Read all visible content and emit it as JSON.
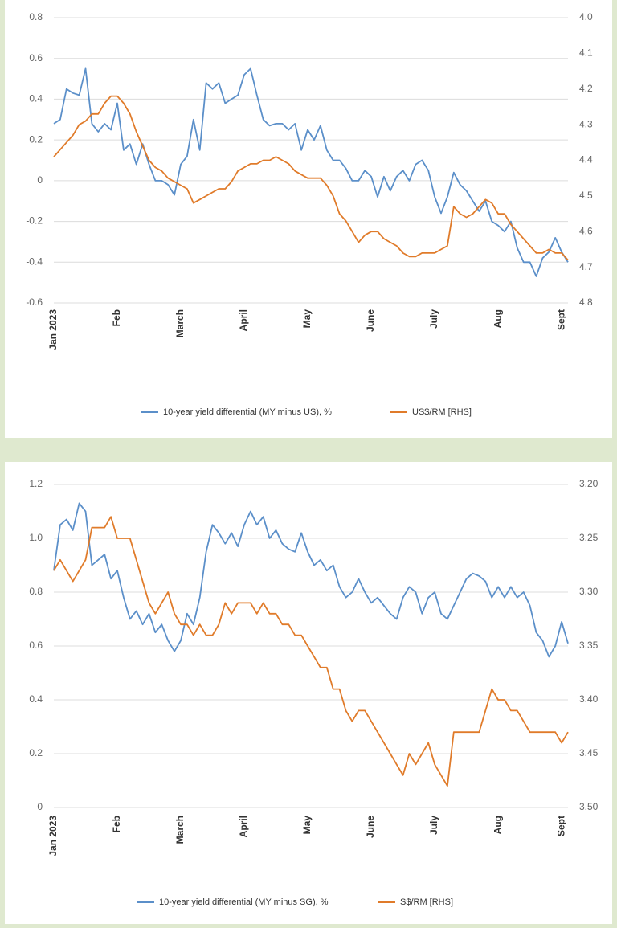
{
  "chart_data": [
    {
      "type": "line",
      "x": [
        0,
        0.1,
        0.2,
        0.3,
        0.4,
        0.5,
        0.6,
        0.7,
        0.8,
        0.9,
        1,
        1.1,
        1.2,
        1.3,
        1.4,
        1.5,
        1.6,
        1.7,
        1.8,
        1.9,
        2,
        2.1,
        2.2,
        2.3,
        2.4,
        2.5,
        2.6,
        2.7,
        2.8,
        2.9,
        3,
        3.1,
        3.2,
        3.3,
        3.4,
        3.5,
        3.6,
        3.7,
        3.8,
        3.9,
        4,
        4.1,
        4.2,
        4.3,
        4.4,
        4.5,
        4.6,
        4.7,
        4.8,
        4.9,
        5,
        5.1,
        5.2,
        5.3,
        5.4,
        5.5,
        5.6,
        5.7,
        5.8,
        5.9,
        6,
        6.1,
        6.2,
        6.3,
        6.4,
        6.5,
        6.6,
        6.7,
        6.8,
        6.9,
        7,
        7.1,
        7.2,
        7.3,
        7.4,
        7.5,
        7.6,
        7.7,
        7.8,
        7.9,
        8,
        8.1
      ],
      "xlim": [
        0,
        8.1
      ],
      "xticks": [
        {
          "value": 0,
          "label": "Jan 2023"
        },
        {
          "value": 1,
          "label": "Feb"
        },
        {
          "value": 2,
          "label": "March"
        },
        {
          "value": 3,
          "label": "April"
        },
        {
          "value": 4,
          "label": "May"
        },
        {
          "value": 5,
          "label": "June"
        },
        {
          "value": 6,
          "label": "July"
        },
        {
          "value": 7,
          "label": "Aug"
        },
        {
          "value": 8,
          "label": "Sept"
        }
      ],
      "ylim": [
        -0.6,
        0.8
      ],
      "yticks": [
        0.8,
        0.6,
        0.4,
        0.2,
        0,
        -0.2,
        -0.4,
        -0.6
      ],
      "y2lim": [
        4.8,
        4.0
      ],
      "y2ticks": [
        {
          "value": 4,
          "label": "4.0"
        },
        4.1,
        4.2,
        4.3,
        4.4,
        4.5,
        4.6,
        4.7,
        4.8
      ],
      "grid": true,
      "series": [
        {
          "name": "10-year yield differential (MY minus US), %",
          "color": "#5b8fc9",
          "values": [
            0.28,
            0.3,
            0.45,
            0.43,
            0.42,
            0.55,
            0.28,
            0.24,
            0.28,
            0.25,
            0.38,
            0.15,
            0.18,
            0.08,
            0.18,
            0.08,
            0.0,
            0.0,
            -0.02,
            -0.07,
            0.08,
            0.12,
            0.3,
            0.15,
            0.48,
            0.45,
            0.48,
            0.38,
            0.4,
            0.42,
            0.52,
            0.55,
            0.42,
            0.3,
            0.27,
            0.28,
            0.28,
            0.25,
            0.28,
            0.15,
            0.25,
            0.2,
            0.27,
            0.15,
            0.1,
            0.1,
            0.06,
            0.0,
            0.0,
            0.05,
            0.02,
            -0.08,
            0.02,
            -0.05,
            0.02,
            0.05,
            0.0,
            0.08,
            0.1,
            0.05,
            -0.08,
            -0.16,
            -0.08,
            0.04,
            -0.02,
            -0.05,
            -0.1,
            -0.15,
            -0.1,
            -0.2,
            -0.22,
            -0.25,
            -0.2,
            -0.33,
            -0.4,
            -0.4,
            -0.47,
            -0.38,
            -0.35,
            -0.28,
            -0.35,
            -0.4
          ]
        },
        {
          "name": "US$/RM [RHS]",
          "color": "#e07b2a",
          "axis": "y2",
          "values": [
            4.39,
            4.37,
            4.35,
            4.33,
            4.3,
            4.29,
            4.27,
            4.27,
            4.24,
            4.22,
            4.22,
            4.24,
            4.27,
            4.32,
            4.36,
            4.4,
            4.42,
            4.43,
            4.45,
            4.46,
            4.47,
            4.48,
            4.52,
            4.51,
            4.5,
            4.49,
            4.48,
            4.48,
            4.46,
            4.43,
            4.42,
            4.41,
            4.41,
            4.4,
            4.4,
            4.39,
            4.4,
            4.41,
            4.43,
            4.44,
            4.45,
            4.45,
            4.45,
            4.47,
            4.5,
            4.55,
            4.57,
            4.6,
            4.63,
            4.61,
            4.6,
            4.6,
            4.62,
            4.63,
            4.64,
            4.66,
            4.67,
            4.67,
            4.66,
            4.66,
            4.66,
            4.65,
            4.64,
            4.53,
            4.55,
            4.56,
            4.55,
            4.53,
            4.51,
            4.52,
            4.55,
            4.55,
            4.58,
            4.6,
            4.62,
            4.64,
            4.66,
            4.66,
            4.65,
            4.66,
            4.66,
            4.68
          ]
        }
      ]
    },
    {
      "type": "line",
      "x": [
        0,
        0.1,
        0.2,
        0.3,
        0.4,
        0.5,
        0.6,
        0.7,
        0.8,
        0.9,
        1,
        1.1,
        1.2,
        1.3,
        1.4,
        1.5,
        1.6,
        1.7,
        1.8,
        1.9,
        2,
        2.1,
        2.2,
        2.3,
        2.4,
        2.5,
        2.6,
        2.7,
        2.8,
        2.9,
        3,
        3.1,
        3.2,
        3.3,
        3.4,
        3.5,
        3.6,
        3.7,
        3.8,
        3.9,
        4,
        4.1,
        4.2,
        4.3,
        4.4,
        4.5,
        4.6,
        4.7,
        4.8,
        4.9,
        5,
        5.1,
        5.2,
        5.3,
        5.4,
        5.5,
        5.6,
        5.7,
        5.8,
        5.9,
        6,
        6.1,
        6.2,
        6.3,
        6.4,
        6.5,
        6.6,
        6.7,
        6.8,
        6.9,
        7,
        7.1,
        7.2,
        7.3,
        7.4,
        7.5,
        7.6,
        7.7,
        7.8,
        7.9,
        8,
        8.1
      ],
      "xlim": [
        0,
        8.1
      ],
      "xticks": [
        {
          "value": 0,
          "label": "Jan 2023"
        },
        {
          "value": 1,
          "label": "Feb"
        },
        {
          "value": 2,
          "label": "March"
        },
        {
          "value": 3,
          "label": "April"
        },
        {
          "value": 4,
          "label": "May"
        },
        {
          "value": 5,
          "label": "June"
        },
        {
          "value": 6,
          "label": "July"
        },
        {
          "value": 7,
          "label": "Aug"
        },
        {
          "value": 8,
          "label": "Sept"
        }
      ],
      "ylim": [
        0,
        1.2
      ],
      "yticks": [
        1.2,
        {
          "value": 1,
          "label": "1.0"
        },
        0.8,
        0.6,
        0.4,
        0.2,
        0
      ],
      "y2lim": [
        3.5,
        3.2
      ],
      "y2ticks": [
        {
          "value": 3.2,
          "label": "3.20"
        },
        {
          "value": 3.25,
          "label": "3.25"
        },
        {
          "value": 3.3,
          "label": "3.30"
        },
        {
          "value": 3.35,
          "label": "3.35"
        },
        {
          "value": 3.4,
          "label": "3.40"
        },
        {
          "value": 3.45,
          "label": "3.45"
        },
        {
          "value": 3.5,
          "label": "3.50"
        }
      ],
      "grid": true,
      "series": [
        {
          "name": "10-year yield differential (MY minus SG), %",
          "color": "#5b8fc9",
          "values": [
            0.88,
            1.05,
            1.07,
            1.03,
            1.13,
            1.1,
            0.9,
            0.92,
            0.94,
            0.85,
            0.88,
            0.78,
            0.7,
            0.73,
            0.68,
            0.72,
            0.65,
            0.68,
            0.62,
            0.58,
            0.62,
            0.72,
            0.68,
            0.78,
            0.95,
            1.05,
            1.02,
            0.98,
            1.02,
            0.97,
            1.05,
            1.1,
            1.05,
            1.08,
            1.0,
            1.03,
            0.98,
            0.96,
            0.95,
            1.02,
            0.95,
            0.9,
            0.92,
            0.88,
            0.9,
            0.82,
            0.78,
            0.8,
            0.85,
            0.8,
            0.76,
            0.78,
            0.75,
            0.72,
            0.7,
            0.78,
            0.82,
            0.8,
            0.72,
            0.78,
            0.8,
            0.72,
            0.7,
            0.75,
            0.8,
            0.85,
            0.87,
            0.86,
            0.84,
            0.78,
            0.82,
            0.78,
            0.82,
            0.78,
            0.8,
            0.75,
            0.65,
            0.62,
            0.56,
            0.6,
            0.69,
            0.61
          ]
        },
        {
          "name": "S$/RM [RHS]",
          "color": "#e07b2a",
          "axis": "y2",
          "values": [
            3.28,
            3.27,
            3.28,
            3.29,
            3.28,
            3.27,
            3.24,
            3.24,
            3.24,
            3.23,
            3.25,
            3.25,
            3.25,
            3.27,
            3.29,
            3.31,
            3.32,
            3.31,
            3.3,
            3.32,
            3.33,
            3.33,
            3.34,
            3.33,
            3.34,
            3.34,
            3.33,
            3.31,
            3.32,
            3.31,
            3.31,
            3.31,
            3.32,
            3.31,
            3.32,
            3.32,
            3.33,
            3.33,
            3.34,
            3.34,
            3.35,
            3.36,
            3.37,
            3.37,
            3.39,
            3.39,
            3.41,
            3.42,
            3.41,
            3.41,
            3.42,
            3.43,
            3.44,
            3.45,
            3.46,
            3.47,
            3.45,
            3.46,
            3.45,
            3.44,
            3.46,
            3.47,
            3.48,
            3.43,
            3.43,
            3.43,
            3.43,
            3.43,
            3.41,
            3.39,
            3.4,
            3.4,
            3.41,
            3.41,
            3.42,
            3.43,
            3.43,
            3.43,
            3.43,
            3.43,
            3.44,
            3.43
          ]
        }
      ]
    }
  ]
}
